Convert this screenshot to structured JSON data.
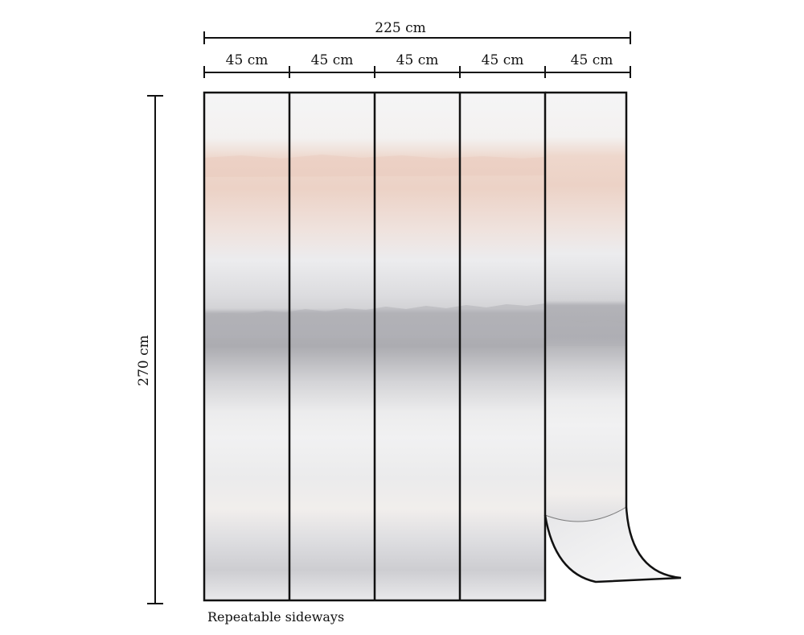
{
  "diagram": {
    "total_width_label": "225 cm",
    "total_height_label": "270 cm",
    "panel_width_labels": [
      "45 cm",
      "45 cm",
      "45 cm",
      "45 cm",
      "45 cm"
    ],
    "note": "Repeatable sideways"
  },
  "colors": {
    "line": "#111111",
    "blush": "#e9c9ba",
    "paper": "#f4f4f4",
    "mist_gray": "#cfcfd2",
    "deep_gray": "#a7a7ab",
    "light_gray": "#c9c9cc"
  }
}
